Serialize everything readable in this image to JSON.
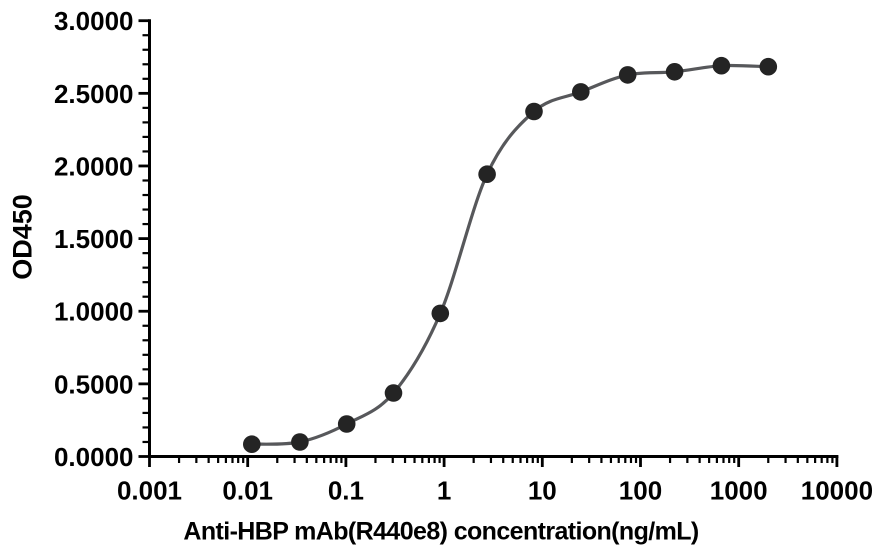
{
  "chart_data": {
    "type": "line",
    "title": "",
    "xlabel": "Anti-HBP mAb(R440e8) concentration(ng/mL)",
    "ylabel": "OD450",
    "x_scale": "log",
    "xlim": [
      0.001,
      10000
    ],
    "ylim": [
      0.0,
      3.0
    ],
    "x_ticks": [
      0.001,
      0.01,
      0.1,
      1,
      10,
      100,
      1000,
      10000
    ],
    "x_tick_labels": [
      "0.001",
      "0.01",
      "0.1",
      "1",
      "10",
      "100",
      "1000",
      "10000"
    ],
    "y_ticks": [
      0.0,
      0.5,
      1.0,
      1.5,
      2.0,
      2.5,
      3.0
    ],
    "y_tick_labels": [
      "0.0000",
      "0.5000",
      "1.0000",
      "1.5000",
      "2.0000",
      "2.5000",
      "3.0000"
    ],
    "y_minor_step": 0.1,
    "grid": false,
    "legend": false,
    "series": [
      {
        "marker": "filled-circle",
        "x": [
          0.011,
          0.034,
          0.102,
          0.305,
          0.914,
          2.743,
          8.23,
          24.691,
          74.074,
          222.222,
          666.667,
          2000
        ],
        "y": [
          0.085,
          0.1,
          0.224,
          0.437,
          0.985,
          1.943,
          2.375,
          2.51,
          2.627,
          2.648,
          2.69,
          2.683
        ]
      }
    ]
  },
  "colors": {
    "background": "#ffffff",
    "axis": "#000000",
    "text": "#000000",
    "curve_line": "#57585b",
    "marker": "#242424"
  }
}
